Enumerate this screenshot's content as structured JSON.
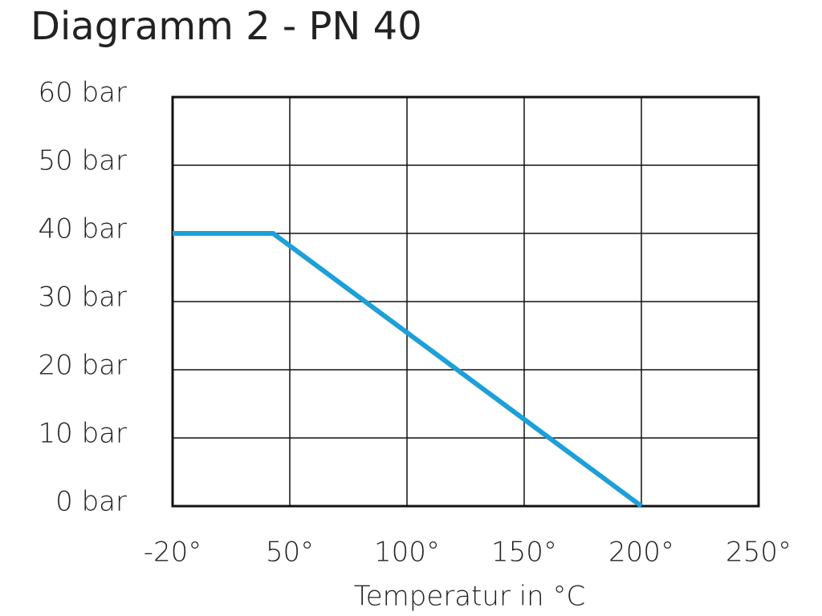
{
  "chart_data": {
    "type": "line",
    "title": "Diagramm 2 - PN 40",
    "x_label": "Temperatur in °C",
    "x": [
      -20,
      40,
      200
    ],
    "values": [
      40,
      40,
      0
    ],
    "color": "#1d9fd8",
    "xlim": [
      -20,
      250
    ],
    "xticks": [
      {
        "value": -20,
        "label": "-20°"
      },
      {
        "value": 50,
        "label": "50°"
      },
      {
        "value": 100,
        "label": "100°"
      },
      {
        "value": 150,
        "label": "150°"
      },
      {
        "value": 200,
        "label": "200°"
      },
      {
        "value": 250,
        "label": "250°"
      }
    ],
    "ylim": [
      0,
      60
    ],
    "yticks": [
      {
        "value": 0,
        "label": "0 bar"
      },
      {
        "value": 10,
        "label": "10 bar"
      },
      {
        "value": 20,
        "label": "20 bar"
      },
      {
        "value": 30,
        "label": "30 bar"
      },
      {
        "value": 40,
        "label": "40 bar"
      },
      {
        "value": 50,
        "label": "50 bar"
      },
      {
        "value": 60,
        "label": "60 bar"
      }
    ],
    "grid": true
  }
}
